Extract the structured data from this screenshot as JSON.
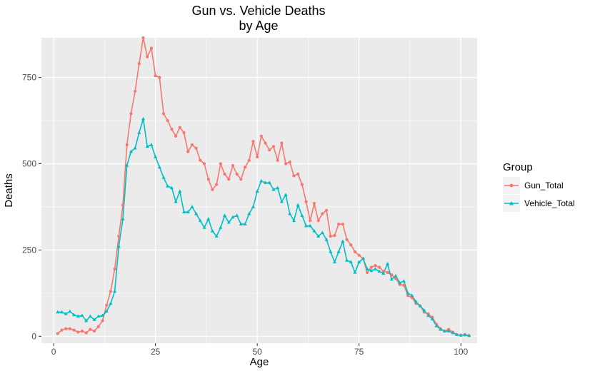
{
  "chart_data": {
    "type": "line",
    "title_lines": [
      "Gun vs. Vehicle Deaths",
      "by Age"
    ],
    "xlabel": "Age",
    "ylabel": "Deaths",
    "xlim": [
      -3,
      104
    ],
    "ylim": [
      -20,
      865
    ],
    "x_ticks": [
      0,
      25,
      50,
      75,
      100
    ],
    "y_ticks": [
      0,
      250,
      500,
      750
    ],
    "grid": true,
    "legend": {
      "title": "Group",
      "position": "right"
    },
    "colors": {
      "Gun_Total": "#F8766D",
      "Vehicle_Total": "#00BFC4",
      "panel_bg": "#EBEBEB",
      "grid_major": "#FFFFFF"
    },
    "series": [
      {
        "name": "Gun_Total",
        "marker": "circle",
        "x": [
          1,
          2,
          3,
          4,
          5,
          6,
          7,
          8,
          9,
          10,
          11,
          12,
          13,
          14,
          15,
          16,
          17,
          18,
          19,
          20,
          21,
          22,
          23,
          24,
          25,
          26,
          27,
          28,
          29,
          30,
          31,
          32,
          33,
          34,
          35,
          36,
          37,
          38,
          39,
          40,
          41,
          42,
          43,
          44,
          45,
          46,
          47,
          48,
          49,
          50,
          51,
          52,
          53,
          54,
          55,
          56,
          57,
          58,
          59,
          60,
          61,
          62,
          63,
          64,
          65,
          66,
          67,
          68,
          69,
          70,
          71,
          72,
          73,
          74,
          75,
          76,
          77,
          78,
          79,
          80,
          81,
          82,
          83,
          84,
          85,
          86,
          87,
          88,
          89,
          90,
          91,
          92,
          93,
          94,
          95,
          96,
          97,
          98,
          99,
          100,
          101,
          102
        ],
        "values": [
          8,
          18,
          22,
          22,
          18,
          12,
          15,
          10,
          20,
          15,
          28,
          45,
          90,
          130,
          195,
          290,
          380,
          555,
          645,
          710,
          790,
          865,
          810,
          835,
          755,
          750,
          645,
          625,
          600,
          580,
          605,
          590,
          535,
          555,
          545,
          510,
          500,
          455,
          425,
          440,
          500,
          470,
          455,
          495,
          470,
          455,
          490,
          510,
          565,
          520,
          580,
          560,
          540,
          550,
          510,
          560,
          500,
          505,
          465,
          470,
          440,
          390,
          335,
          385,
          335,
          355,
          365,
          290,
          292,
          325,
          325,
          280,
          265,
          245,
          235,
          225,
          185,
          200,
          205,
          200,
          188,
          185,
          178,
          168,
          150,
          148,
          118,
          112,
          95,
          88,
          70,
          65,
          55,
          35,
          22,
          15,
          20,
          12,
          5,
          3,
          5,
          2
        ]
      },
      {
        "name": "Vehicle_Total",
        "marker": "triangle",
        "x": [
          1,
          2,
          3,
          4,
          5,
          6,
          7,
          8,
          9,
          10,
          11,
          12,
          13,
          14,
          15,
          16,
          17,
          18,
          19,
          20,
          21,
          22,
          23,
          24,
          25,
          26,
          27,
          28,
          29,
          30,
          31,
          32,
          33,
          34,
          35,
          36,
          37,
          38,
          39,
          40,
          41,
          42,
          43,
          44,
          45,
          46,
          47,
          48,
          49,
          50,
          51,
          52,
          53,
          54,
          55,
          56,
          57,
          58,
          59,
          60,
          61,
          62,
          63,
          64,
          65,
          66,
          67,
          68,
          69,
          70,
          71,
          72,
          73,
          74,
          75,
          76,
          77,
          78,
          79,
          80,
          81,
          82,
          83,
          84,
          85,
          86,
          87,
          88,
          89,
          90,
          91,
          92,
          93,
          94,
          95,
          96,
          97,
          98,
          99,
          100,
          101,
          102
        ],
        "values": [
          70,
          70,
          65,
          72,
          62,
          58,
          60,
          45,
          58,
          48,
          58,
          60,
          72,
          95,
          130,
          260,
          340,
          495,
          535,
          545,
          590,
          630,
          550,
          555,
          520,
          490,
          460,
          435,
          430,
          390,
          420,
          360,
          360,
          375,
          355,
          335,
          315,
          340,
          305,
          290,
          315,
          350,
          330,
          345,
          350,
          325,
          325,
          355,
          375,
          420,
          450,
          445,
          445,
          425,
          430,
          390,
          410,
          355,
          335,
          380,
          350,
          320,
          320,
          305,
          290,
          300,
          280,
          245,
          215,
          245,
          275,
          220,
          215,
          185,
          215,
          225,
          195,
          190,
          195,
          188,
          182,
          210,
          165,
          175,
          155,
          160,
          125,
          118,
          100,
          88,
          75,
          60,
          50,
          30,
          20,
          15,
          15,
          10,
          5,
          3,
          4,
          2
        ]
      }
    ]
  }
}
